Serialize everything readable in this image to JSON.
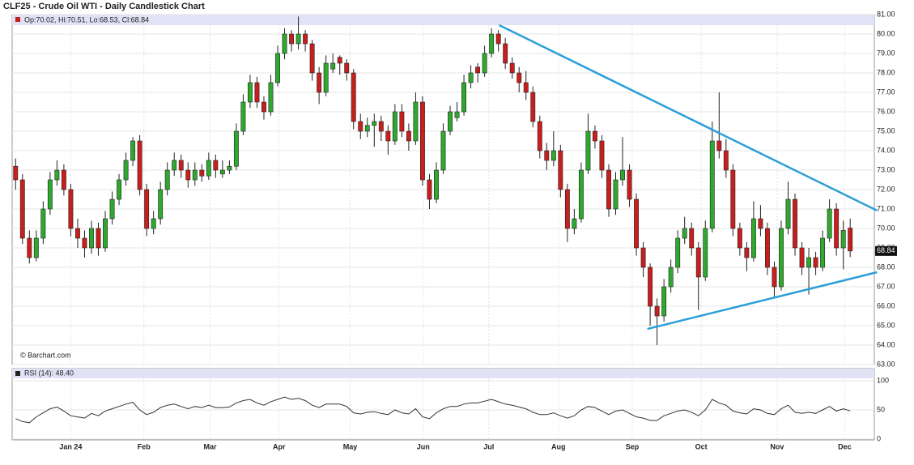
{
  "chart_data": {
    "type": "candlestick",
    "title": "CLF25 - Crude Oil WTI - Daily Candlestick Chart",
    "legend": "Op:70.02, Hi:70.51, Lo:68.53, Cl:68.84",
    "source": "© Barchart.com",
    "up_color": "#2ea82e",
    "down_color": "#c81e1e",
    "xlim": [
      -0.5,
      124.5
    ],
    "xticks": [
      {
        "value": 8,
        "label": "Jan 24"
      },
      {
        "value": 18.6,
        "label": "Feb"
      },
      {
        "value": 28.2,
        "label": "Mar"
      },
      {
        "value": 38.2,
        "label": "Apr"
      },
      {
        "value": 48.5,
        "label": "May"
      },
      {
        "value": 59.1,
        "label": "Jun"
      },
      {
        "value": 68.6,
        "label": "Jul"
      },
      {
        "value": 78.7,
        "label": "Aug"
      },
      {
        "value": 89.4,
        "label": "Sep"
      },
      {
        "value": 99.4,
        "label": "Oct"
      },
      {
        "value": 110.4,
        "label": "Nov"
      },
      {
        "value": 120.2,
        "label": "Dec"
      }
    ],
    "ylim": [
      63,
      81
    ],
    "yticks": [
      {
        "value": 63,
        "label": "63.00"
      },
      {
        "value": 64,
        "label": "64.00"
      },
      {
        "value": 65,
        "label": "65.00"
      },
      {
        "value": 66,
        "label": "66.00"
      },
      {
        "value": 67,
        "label": "67.00"
      },
      {
        "value": 68,
        "label": "68.00"
      },
      {
        "value": 69,
        "label": "69.00"
      },
      {
        "value": 70,
        "label": "70.00"
      },
      {
        "value": 71,
        "label": "71.00"
      },
      {
        "value": 72,
        "label": "72.00"
      },
      {
        "value": 73,
        "label": "73.00"
      },
      {
        "value": 74,
        "label": "74.00"
      },
      {
        "value": 75,
        "label": "75.00"
      },
      {
        "value": 76,
        "label": "76.00"
      },
      {
        "value": 77,
        "label": "77.00"
      },
      {
        "value": 78,
        "label": "78.00"
      },
      {
        "value": 79,
        "label": "79.00"
      },
      {
        "value": 80,
        "label": "80.00"
      },
      {
        "value": 81,
        "label": "81.00"
      }
    ],
    "ohlc": [
      [
        73.2,
        73.6,
        72.0,
        72.5
      ],
      [
        72.5,
        72.8,
        69.2,
        69.5
      ],
      [
        69.5,
        69.9,
        68.2,
        68.5
      ],
      [
        68.5,
        69.9,
        68.3,
        69.5
      ],
      [
        69.5,
        71.4,
        69.2,
        71.0
      ],
      [
        71.0,
        72.9,
        70.7,
        72.5
      ],
      [
        72.5,
        73.5,
        72.2,
        73.0
      ],
      [
        73.0,
        73.3,
        71.7,
        72.0
      ],
      [
        72.0,
        72.3,
        69.6,
        70.0
      ],
      [
        70.0,
        70.5,
        69.0,
        69.5
      ],
      [
        69.5,
        69.9,
        68.5,
        69.0
      ],
      [
        69.0,
        70.4,
        68.7,
        70.0
      ],
      [
        70.0,
        70.3,
        68.6,
        69.0
      ],
      [
        69.0,
        70.9,
        68.8,
        70.5
      ],
      [
        70.5,
        71.9,
        70.2,
        71.5
      ],
      [
        71.5,
        72.8,
        71.2,
        72.5
      ],
      [
        72.5,
        73.9,
        72.2,
        73.5
      ],
      [
        73.5,
        74.7,
        73.2,
        74.5
      ],
      [
        74.5,
        74.8,
        71.7,
        72.0
      ],
      [
        72.0,
        72.3,
        69.6,
        70.0
      ],
      [
        70.0,
        70.9,
        69.7,
        70.5
      ],
      [
        70.5,
        72.4,
        70.2,
        72.0
      ],
      [
        72.0,
        73.4,
        71.7,
        73.0
      ],
      [
        73.0,
        73.9,
        72.7,
        73.5
      ],
      [
        73.5,
        73.8,
        72.6,
        73.0
      ],
      [
        73.0,
        73.4,
        72.1,
        72.5
      ],
      [
        72.5,
        73.4,
        72.2,
        73.0
      ],
      [
        73.0,
        73.3,
        72.4,
        72.7
      ],
      [
        72.7,
        73.9,
        72.5,
        73.5
      ],
      [
        73.5,
        73.8,
        72.6,
        73.0
      ],
      [
        72.8,
        73.5,
        72.6,
        73.0
      ],
      [
        73.0,
        73.5,
        72.8,
        73.2
      ],
      [
        73.2,
        75.4,
        73.0,
        75.0
      ],
      [
        75.0,
        76.9,
        74.8,
        76.5
      ],
      [
        76.5,
        77.9,
        76.2,
        77.5
      ],
      [
        77.5,
        77.8,
        76.2,
        76.5
      ],
      [
        76.5,
        76.8,
        75.6,
        76.0
      ],
      [
        76.0,
        77.9,
        75.8,
        77.5
      ],
      [
        77.5,
        79.4,
        77.3,
        79.0
      ],
      [
        79.0,
        80.3,
        78.7,
        80.0
      ],
      [
        80.0,
        80.2,
        79.1,
        79.5
      ],
      [
        79.5,
        80.9,
        79.2,
        80.0
      ],
      [
        80.0,
        80.2,
        79.1,
        79.5
      ],
      [
        79.5,
        79.7,
        77.6,
        78.0
      ],
      [
        78.0,
        78.3,
        76.4,
        77.0
      ],
      [
        77.0,
        78.9,
        76.8,
        78.5
      ],
      [
        78.2,
        79.0,
        78.0,
        78.5
      ],
      [
        78.8,
        78.9,
        77.9,
        78.5
      ],
      [
        78.5,
        78.7,
        77.6,
        78.0
      ],
      [
        78.0,
        78.2,
        75.1,
        75.5
      ],
      [
        75.5,
        75.9,
        74.6,
        75.0
      ],
      [
        75.0,
        75.7,
        74.7,
        75.3
      ],
      [
        75.3,
        75.9,
        74.2,
        75.5
      ],
      [
        75.5,
        75.8,
        74.5,
        75.0
      ],
      [
        75.0,
        75.3,
        73.8,
        74.5
      ],
      [
        74.5,
        76.4,
        74.3,
        76.0
      ],
      [
        76.0,
        76.4,
        74.7,
        75.0
      ],
      [
        75.0,
        75.4,
        74.0,
        74.5
      ],
      [
        74.5,
        77.0,
        74.3,
        76.5
      ],
      [
        76.5,
        76.8,
        72.2,
        72.5
      ],
      [
        72.5,
        72.8,
        71.0,
        71.5
      ],
      [
        71.5,
        73.4,
        71.3,
        73.0
      ],
      [
        73.0,
        75.4,
        72.8,
        75.0
      ],
      [
        75.0,
        76.3,
        74.8,
        76.0
      ],
      [
        75.7,
        76.5,
        75.5,
        76.0
      ],
      [
        76.0,
        77.9,
        75.8,
        77.5
      ],
      [
        77.5,
        78.4,
        77.2,
        78.0
      ],
      [
        78.3,
        78.5,
        77.5,
        78.0
      ],
      [
        78.0,
        79.4,
        77.8,
        79.0
      ],
      [
        79.0,
        80.3,
        78.8,
        80.0
      ],
      [
        80.0,
        80.2,
        79.1,
        79.5
      ],
      [
        79.5,
        79.8,
        78.2,
        78.5
      ],
      [
        78.5,
        78.8,
        77.7,
        78.0
      ],
      [
        78.0,
        78.3,
        77.0,
        77.5
      ],
      [
        77.5,
        78.1,
        76.6,
        77.0
      ],
      [
        77.0,
        77.3,
        75.2,
        75.5
      ],
      [
        75.5,
        75.8,
        73.6,
        74.0
      ],
      [
        74.0,
        74.4,
        73.0,
        73.5
      ],
      [
        73.5,
        75.0,
        73.2,
        74.0
      ],
      [
        74.0,
        74.3,
        71.6,
        72.0
      ],
      [
        72.0,
        72.3,
        69.3,
        70.0
      ],
      [
        70.0,
        71.0,
        69.7,
        70.5
      ],
      [
        70.5,
        73.4,
        70.3,
        73.0
      ],
      [
        73.0,
        75.9,
        72.8,
        75.0
      ],
      [
        75.0,
        75.3,
        74.1,
        74.5
      ],
      [
        74.5,
        74.8,
        72.6,
        73.0
      ],
      [
        73.0,
        73.3,
        70.6,
        71.0
      ],
      [
        71.0,
        72.9,
        70.7,
        72.5
      ],
      [
        72.5,
        74.7,
        72.2,
        73.0
      ],
      [
        73.0,
        73.3,
        71.1,
        71.5
      ],
      [
        71.5,
        71.8,
        68.6,
        69.0
      ],
      [
        69.0,
        69.3,
        67.5,
        68.0
      ],
      [
        68.0,
        68.2,
        65.0,
        66.0
      ],
      [
        66.0,
        66.4,
        64.0,
        65.5
      ],
      [
        65.5,
        67.4,
        65.2,
        67.0
      ],
      [
        67.0,
        68.4,
        66.7,
        68.0
      ],
      [
        68.0,
        69.9,
        67.7,
        69.5
      ],
      [
        69.5,
        70.6,
        69.2,
        70.0
      ],
      [
        70.0,
        70.3,
        68.6,
        69.0
      ],
      [
        69.0,
        69.3,
        65.8,
        67.5
      ],
      [
        67.5,
        70.4,
        67.3,
        70.0
      ],
      [
        70.0,
        75.5,
        69.8,
        74.5
      ],
      [
        74.5,
        77.0,
        73.6,
        74.0
      ],
      [
        74.0,
        74.6,
        72.6,
        73.0
      ],
      [
        73.0,
        73.3,
        69.6,
        70.0
      ],
      [
        70.0,
        70.3,
        68.6,
        69.0
      ],
      [
        69.0,
        69.3,
        67.8,
        68.5
      ],
      [
        68.5,
        71.4,
        68.3,
        70.5
      ],
      [
        70.5,
        71.2,
        69.6,
        70.0
      ],
      [
        70.0,
        70.3,
        67.6,
        68.0
      ],
      [
        68.0,
        68.3,
        66.4,
        67.0
      ],
      [
        67.0,
        70.4,
        66.8,
        70.0
      ],
      [
        70.0,
        72.4,
        69.7,
        71.5
      ],
      [
        71.5,
        71.8,
        68.6,
        69.0
      ],
      [
        69.0,
        69.3,
        67.6,
        68.0
      ],
      [
        68.0,
        69.0,
        66.6,
        68.5
      ],
      [
        68.5,
        68.8,
        67.6,
        68.0
      ],
      [
        68.0,
        69.9,
        67.8,
        69.5
      ],
      [
        69.5,
        71.5,
        69.3,
        71.0
      ],
      [
        71.0,
        71.3,
        68.6,
        69.0
      ],
      [
        69.0,
        70.4,
        67.9,
        69.9
      ],
      [
        70.02,
        70.51,
        68.53,
        68.84
      ]
    ],
    "trendlines": {
      "color": "#2b9fd9",
      "lines": [
        {
          "x": [
            70.1,
            124.9
          ],
          "y": [
            80.46,
            70.92
          ]
        },
        {
          "x": [
            91.6,
            124.9
          ],
          "y": [
            64.83,
            67.75
          ]
        }
      ]
    },
    "rsi": {
      "label": "RSI (14): 48.40",
      "color": "#333333",
      "ylim": [
        0,
        100
      ],
      "yticks": [
        0,
        50,
        100
      ],
      "values": [
        35,
        30,
        28,
        38,
        45,
        52,
        55,
        48,
        40,
        38,
        36,
        44,
        40,
        48,
        52,
        56,
        60,
        63,
        50,
        42,
        46,
        54,
        58,
        60,
        56,
        52,
        56,
        54,
        58,
        54,
        54,
        55,
        62,
        66,
        68,
        62,
        58,
        64,
        68,
        72,
        68,
        70,
        66,
        58,
        54,
        60,
        60,
        60,
        56,
        45,
        43,
        46,
        47,
        44,
        42,
        50,
        45,
        43,
        52,
        38,
        35,
        45,
        52,
        56,
        56,
        60,
        62,
        62,
        65,
        68,
        64,
        60,
        58,
        55,
        52,
        46,
        42,
        42,
        45,
        40,
        36,
        40,
        50,
        56,
        54,
        48,
        42,
        48,
        50,
        44,
        38,
        36,
        32,
        32,
        40,
        44,
        48,
        50,
        46,
        40,
        50,
        68,
        62,
        58,
        48,
        45,
        43,
        52,
        50,
        44,
        42,
        52,
        58,
        46,
        44,
        46,
        44,
        50,
        56,
        48,
        52,
        48.4
      ]
    }
  }
}
